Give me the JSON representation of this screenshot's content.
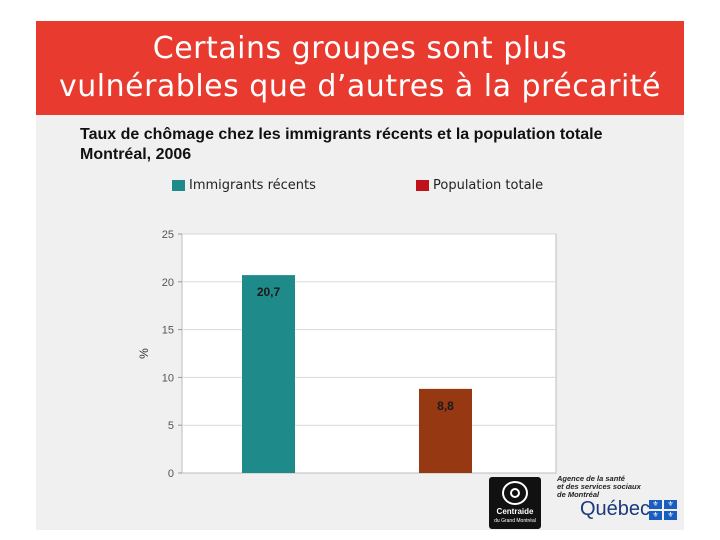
{
  "slide": {
    "title_line1": "Certains groupes sont plus",
    "title_line2": "vulnérables que d’autres à la précarité",
    "title_color": "#e83a2f"
  },
  "chart_data": {
    "type": "bar",
    "title_line1": "Taux de chômage chez les immigrants récents et la population totale",
    "title_line2": "Montréal, 2006",
    "categories": [
      "Immigrants récents",
      "Population totale"
    ],
    "values": [
      20.7,
      8.8
    ],
    "value_labels": [
      "20,7",
      "8,8"
    ],
    "colors": [
      "#1f8a8a",
      "#963812"
    ],
    "ylabel": "%",
    "xlabel": "",
    "ylim": [
      0,
      25
    ],
    "yticks": [
      0,
      5,
      10,
      15,
      20,
      25
    ],
    "grid": true,
    "legend": {
      "placement": "top",
      "entries": [
        {
          "label": "Immigrants récents",
          "color": "#1f8a8a"
        },
        {
          "label": "Population totale",
          "color": "#c0121a"
        }
      ]
    }
  },
  "logos": {
    "centraide": {
      "name": "Centraide",
      "subtitle": "du Grand Montréal"
    },
    "agency": {
      "line1": "Agence de la santé",
      "line2": "et des services sociaux",
      "line3": "de Montréal"
    },
    "quebec": {
      "wordmark": "Québec",
      "fleur": "⚜"
    }
  }
}
